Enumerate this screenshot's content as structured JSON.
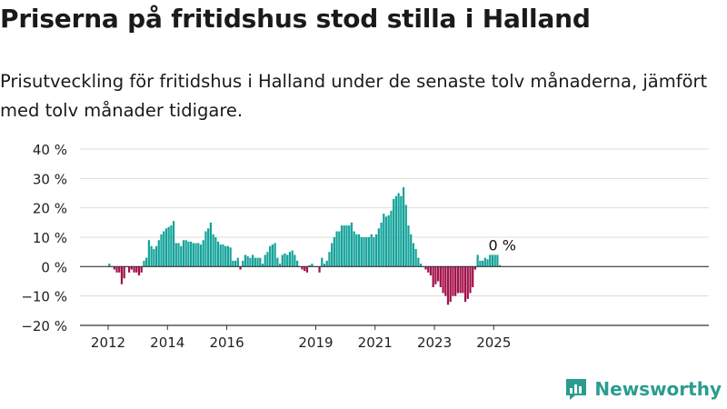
{
  "title": "Priserna på fritidshus stod stilla i Halland",
  "subtitle": "Prisutveckling för fritidshus i Halland under de senaste tolv månaderna, jämfört med tolv månader tidigare.",
  "brand": "Newsworthy",
  "colors": {
    "positive": "#14a39a",
    "negative": "#a3104a",
    "grid": "#dddddd",
    "axis": "#333333",
    "brand": "#2a9d8f"
  },
  "chart_data": {
    "type": "bar",
    "x_unit": "month",
    "start": "2012-01",
    "ylim": [
      -20,
      40
    ],
    "yticks": [
      -20,
      -10,
      0,
      10,
      20,
      30,
      40
    ],
    "ytick_labels": [
      "−20 %",
      "−10 %",
      "0 %",
      "10 %",
      "20 %",
      "30 %",
      "40 %"
    ],
    "xtick_labels": [
      "2012",
      "2014",
      "2016",
      "2019",
      "2021",
      "2023",
      "2025"
    ],
    "grid": true,
    "annotation": "0 %",
    "values": [
      1,
      0,
      -1,
      -2,
      -2,
      -6,
      -4,
      0,
      -2,
      -1,
      -2,
      -2,
      -3,
      -2,
      2,
      3,
      9,
      7,
      6,
      7,
      9,
      11,
      12,
      13,
      13.5,
      14,
      15.5,
      8,
      8,
      7,
      9,
      9,
      8.5,
      8.5,
      8,
      8,
      8,
      7.5,
      9,
      12,
      13,
      15,
      11,
      10,
      8.5,
      7.5,
      7.5,
      7,
      7,
      6.5,
      2,
      2,
      3,
      -1,
      2,
      4,
      3.5,
      3,
      4,
      3,
      3,
      3,
      1,
      4,
      5,
      7,
      7.5,
      8,
      3,
      1,
      4,
      4.5,
      4,
      5,
      5.5,
      4,
      2,
      0,
      -1,
      -1.5,
      -2,
      0.5,
      1,
      0,
      0,
      -2,
      3,
      1,
      2,
      5,
      8,
      10,
      12,
      12,
      14,
      14,
      14,
      14,
      15,
      12,
      11,
      11,
      10,
      10,
      10,
      10,
      11,
      10,
      11,
      13,
      15,
      18,
      17,
      17.5,
      19,
      23,
      24,
      25,
      24,
      27,
      21,
      14,
      11,
      8,
      6,
      3,
      1,
      0,
      -1,
      -2,
      -3,
      -7,
      -6,
      -5,
      -7,
      -9,
      -10,
      -13,
      -12,
      -10,
      -10,
      -9,
      -9,
      -9,
      -12,
      -11,
      -9,
      -7,
      -1,
      4,
      2,
      2,
      3,
      2.5,
      4,
      4,
      4,
      4,
      0.5
    ]
  }
}
